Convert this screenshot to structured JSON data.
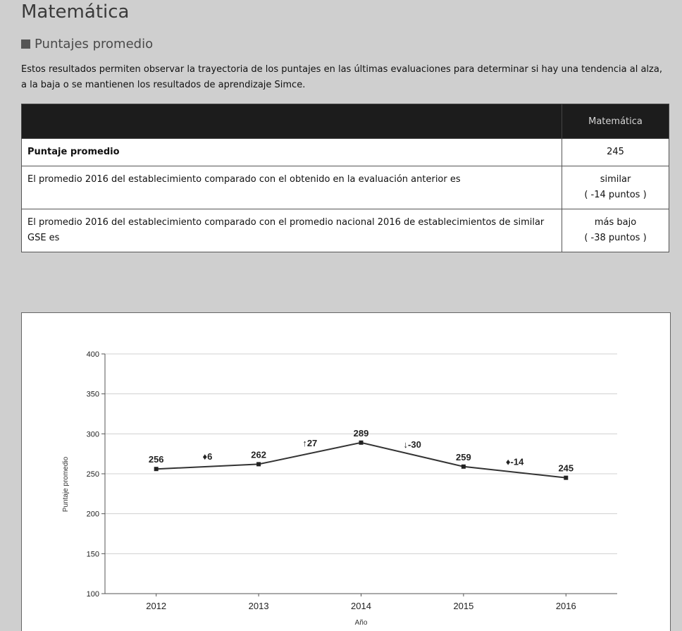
{
  "page": {
    "title": "Matemática",
    "section_title": "Puntajes promedio",
    "intro": "Estos resultados permiten observar la trayectoria de los puntajes en las últimas evaluaciones para determinar si hay una tendencia al alza, a la baja o se mantienen los resultados de aprendizaje Simce."
  },
  "table": {
    "header_empty": "",
    "header_subject": "Matemática",
    "rows": [
      {
        "label": "Puntaje promedio",
        "value": "245",
        "detail": ""
      },
      {
        "label": "El promedio 2016 del establecimiento comparado con el obtenido en la evaluación anterior es",
        "value": "similar",
        "detail": "( -14 puntos )"
      },
      {
        "label": "El promedio 2016 del establecimiento comparado con el promedio nacional 2016 de establecimientos de similar GSE es",
        "value": "más bajo",
        "detail": "( -38 puntos )"
      }
    ]
  },
  "chart_data": {
    "type": "line",
    "x": [
      "2012",
      "2013",
      "2014",
      "2015",
      "2016"
    ],
    "series": [
      {
        "values": [
          256,
          262,
          289,
          259,
          245
        ]
      }
    ],
    "differences": [
      {
        "between": [
          "2012",
          "2013"
        ],
        "label": "♦6",
        "value": 6
      },
      {
        "between": [
          "2013",
          "2014"
        ],
        "label": "↑27",
        "value": 27
      },
      {
        "between": [
          "2014",
          "2015"
        ],
        "label": "↓-30",
        "value": -30
      },
      {
        "between": [
          "2015",
          "2016"
        ],
        "label": "♦-14",
        "value": -14
      }
    ],
    "ylim": [
      100,
      400
    ],
    "yticks": [
      100,
      150,
      200,
      250,
      300,
      350,
      400
    ],
    "xlabel": "Año",
    "ylabel": "Puntaje promedio",
    "grid": true,
    "colors": {
      "line": "#333333",
      "grid": "#d0d0d0"
    }
  }
}
